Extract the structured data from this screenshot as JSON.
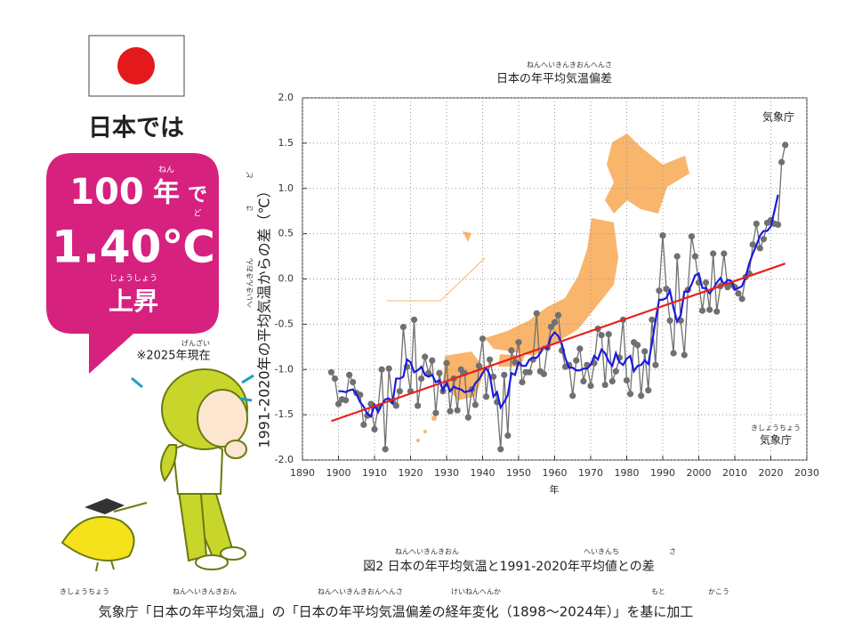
{
  "headline": "日本では",
  "badge": {
    "years": "100",
    "year_unit": "年",
    "year_unit_ruby": "ねん",
    "particle": "で",
    "amount": "1.40℃",
    "amount_ruby": "ど",
    "rise": "上昇",
    "rise_ruby": "じょうしょう"
  },
  "note": {
    "text": "※2025年現在",
    "ruby": "げんざい"
  },
  "caption": {
    "text": "図2 日本の年平均気温と1991-2020年平均値との差",
    "rubies": [
      "ねんへいきんきおん",
      "へいきんち",
      "さ"
    ]
  },
  "source": {
    "text": "気象庁「日本の年平均気温」の「日本の年平均気温偏差の経年変化（1898〜2024年）」を基に加工",
    "rubies": [
      "きしょうちょう",
      "ねんへいきんきおん",
      "ねんへいきんきおんへんさ",
      "けいねんへんか",
      "もと",
      "かこう"
    ]
  },
  "chart_data": {
    "type": "line",
    "title": "日本の年平均気温偏差",
    "title_ruby": "ねんへいきんきおんへんさ",
    "y_label": "1991-2020年の平均気温からの差（℃）",
    "y_label_rubies": [
      "へいきんきおん",
      "さ",
      "ど"
    ],
    "x_label": "年",
    "agency": "気象庁",
    "agency_bottom": "気象庁",
    "agency_bottom_ruby": "きしょうちょう",
    "xlim": [
      1890,
      2030
    ],
    "xticks": [
      1890,
      1900,
      1910,
      1920,
      1930,
      1940,
      1950,
      1960,
      1970,
      1980,
      1990,
      2000,
      2010,
      2020,
      2030
    ],
    "ylim": [
      -2,
      2
    ],
    "yticks": [
      {
        "value": -2,
        "label": "-2.0"
      },
      -1.5,
      {
        "value": -1,
        "label": "-1.0"
      },
      -0.5,
      {
        "value": 0,
        "label": "0.0"
      },
      0.5,
      {
        "value": 1,
        "label": "1.0"
      },
      1.5,
      {
        "value": 2,
        "label": "2.0"
      }
    ],
    "grid": true,
    "series": [
      {
        "color": "#707070",
        "markers": true,
        "x": [
          1898,
          1899,
          1900,
          1901,
          1902,
          1903,
          1904,
          1905,
          1906,
          1907,
          1908,
          1909,
          1910,
          1911,
          1912,
          1913,
          1914,
          1915,
          1916,
          1917,
          1918,
          1919,
          1920,
          1921,
          1922,
          1923,
          1924,
          1925,
          1926,
          1927,
          1928,
          1929,
          1930,
          1931,
          1932,
          1933,
          1934,
          1935,
          1936,
          1937,
          1938,
          1939,
          1940,
          1941,
          1942,
          1943,
          1944,
          1945,
          1946,
          1947,
          1948,
          1949,
          1950,
          1951,
          1952,
          1953,
          1954,
          1955,
          1956,
          1957,
          1958,
          1959,
          1960,
          1961,
          1962,
          1963,
          1964,
          1965,
          1966,
          1967,
          1968,
          1969,
          1970,
          1971,
          1972,
          1973,
          1974,
          1975,
          1976,
          1977,
          1978,
          1979,
          1980,
          1981,
          1982,
          1983,
          1984,
          1985,
          1986,
          1987,
          1988,
          1989,
          1990,
          1991,
          1992,
          1993,
          1994,
          1995,
          1996,
          1997,
          1998,
          1999,
          2000,
          2001,
          2002,
          2003,
          2004,
          2005,
          2006,
          2007,
          2008,
          2009,
          2010,
          2011,
          2012,
          2013,
          2014,
          2015,
          2016,
          2017,
          2018,
          2019,
          2020,
          2021,
          2022,
          2023,
          2024
        ],
        "values": [
          -1.03,
          -1.1,
          -1.38,
          -1.33,
          -1.34,
          -1.06,
          -1.14,
          -1.26,
          -1.28,
          -1.61,
          -1.51,
          -1.38,
          -1.66,
          -1.42,
          -1.0,
          -1.88,
          -0.99,
          -1.35,
          -1.4,
          -1.24,
          -0.53,
          -0.97,
          -1.24,
          -0.45,
          -1.4,
          -1.1,
          -0.86,
          -1.04,
          -0.9,
          -1.48,
          -1.04,
          -1.24,
          -0.93,
          -1.46,
          -1.1,
          -1.45,
          -1.0,
          -1.04,
          -1.53,
          -1.22,
          -1.39,
          -0.96,
          -0.66,
          -1.3,
          -0.89,
          -1.08,
          -1.36,
          -1.88,
          -1.06,
          -1.73,
          -0.79,
          -0.92,
          -0.7,
          -1.14,
          -1.03,
          -1.03,
          -0.89,
          -0.38,
          -1.02,
          -1.05,
          -0.76,
          -0.53,
          -0.48,
          -0.4,
          -0.79,
          -0.97,
          -0.95,
          -1.29,
          -0.9,
          -0.77,
          -1.13,
          -0.95,
          -1.18,
          -0.93,
          -0.55,
          -0.62,
          -1.17,
          -0.61,
          -1.13,
          -1.02,
          -0.87,
          -0.45,
          -1.12,
          -1.27,
          -0.7,
          -0.73,
          -1.29,
          -0.8,
          -1.23,
          -0.45,
          -0.95,
          -0.13,
          0.48,
          -0.11,
          -0.46,
          -0.82,
          0.25,
          -0.46,
          -0.84,
          -0.12,
          0.47,
          0.25,
          -0.04,
          -0.35,
          -0.04,
          -0.34,
          0.28,
          -0.36,
          -0.08,
          0.28,
          -0.09,
          -0.06,
          -0.09,
          -0.16,
          -0.22,
          0.02,
          0.06,
          0.38,
          0.61,
          0.34,
          0.44,
          0.62,
          0.65,
          0.61,
          0.6,
          1.29,
          1.48
        ]
      },
      {
        "color": "#1a1adf",
        "markers": false,
        "x": [
          1900,
          1901,
          1902,
          1903,
          1904,
          1905,
          1906,
          1907,
          1908,
          1909,
          1910,
          1911,
          1912,
          1913,
          1914,
          1915,
          1916,
          1917,
          1918,
          1919,
          1920,
          1921,
          1922,
          1923,
          1924,
          1925,
          1926,
          1927,
          1928,
          1929,
          1930,
          1931,
          1932,
          1933,
          1934,
          1935,
          1936,
          1937,
          1938,
          1939,
          1940,
          1941,
          1942,
          1943,
          1944,
          1945,
          1946,
          1947,
          1948,
          1949,
          1950,
          1951,
          1952,
          1953,
          1954,
          1955,
          1956,
          1957,
          1958,
          1959,
          1960,
          1961,
          1962,
          1963,
          1964,
          1965,
          1966,
          1967,
          1968,
          1969,
          1970,
          1971,
          1972,
          1973,
          1974,
          1975,
          1976,
          1977,
          1978,
          1979,
          1980,
          1981,
          1982,
          1983,
          1984,
          1985,
          1986,
          1987,
          1988,
          1989,
          1990,
          1991,
          1992,
          1993,
          1994,
          1995,
          1996,
          1997,
          1998,
          1999,
          2000,
          2001,
          2002,
          2003,
          2004,
          2005,
          2006,
          2007,
          2008,
          2009,
          2010,
          2011,
          2012,
          2013,
          2014,
          2015,
          2016,
          2017,
          2018,
          2019,
          2020,
          2021,
          2022
        ],
        "values": [
          -1.24,
          -1.24,
          -1.25,
          -1.23,
          -1.22,
          -1.27,
          -1.36,
          -1.41,
          -1.49,
          -1.52,
          -1.39,
          -1.47,
          -1.39,
          -1.33,
          -1.32,
          -1.37,
          -1.1,
          -1.1,
          -1.08,
          -0.89,
          -0.92,
          -1.03,
          -1.01,
          -0.97,
          -1.06,
          -1.08,
          -1.06,
          -1.14,
          -1.12,
          -1.23,
          -1.15,
          -1.24,
          -1.19,
          -1.21,
          -1.22,
          -1.25,
          -1.24,
          -1.23,
          -1.15,
          -1.11,
          -1.04,
          -0.98,
          -1.06,
          -1.3,
          -1.25,
          -1.42,
          -1.36,
          -1.28,
          -1.04,
          -1.06,
          -0.92,
          -0.96,
          -0.96,
          -0.89,
          -0.87,
          -0.87,
          -0.82,
          -0.75,
          -0.77,
          -0.64,
          -0.59,
          -0.63,
          -0.72,
          -0.88,
          -0.98,
          -0.98,
          -1.01,
          -1.01,
          -0.99,
          -0.99,
          -0.95,
          -0.85,
          -0.89,
          -0.78,
          -0.82,
          -0.91,
          -0.96,
          -0.82,
          -0.92,
          -0.95,
          -0.88,
          -0.85,
          -1.02,
          -0.96,
          -0.95,
          -0.9,
          -0.94,
          -0.71,
          -0.46,
          -0.23,
          -0.23,
          -0.21,
          -0.13,
          -0.32,
          -0.47,
          -0.4,
          -0.14,
          -0.14,
          -0.06,
          0.04,
          0.06,
          -0.1,
          -0.1,
          -0.16,
          -0.11,
          -0.04,
          0.01,
          -0.06,
          -0.01,
          -0.02,
          -0.12,
          -0.1,
          -0.08,
          0.02,
          0.17,
          0.28,
          0.37,
          0.48,
          0.53,
          0.53,
          0.58,
          0.75,
          0.93
        ]
      },
      {
        "color": "#e8211d",
        "markers": false,
        "x": [
          1898,
          2024
        ],
        "values": [
          -1.57,
          0.17
        ]
      }
    ]
  }
}
